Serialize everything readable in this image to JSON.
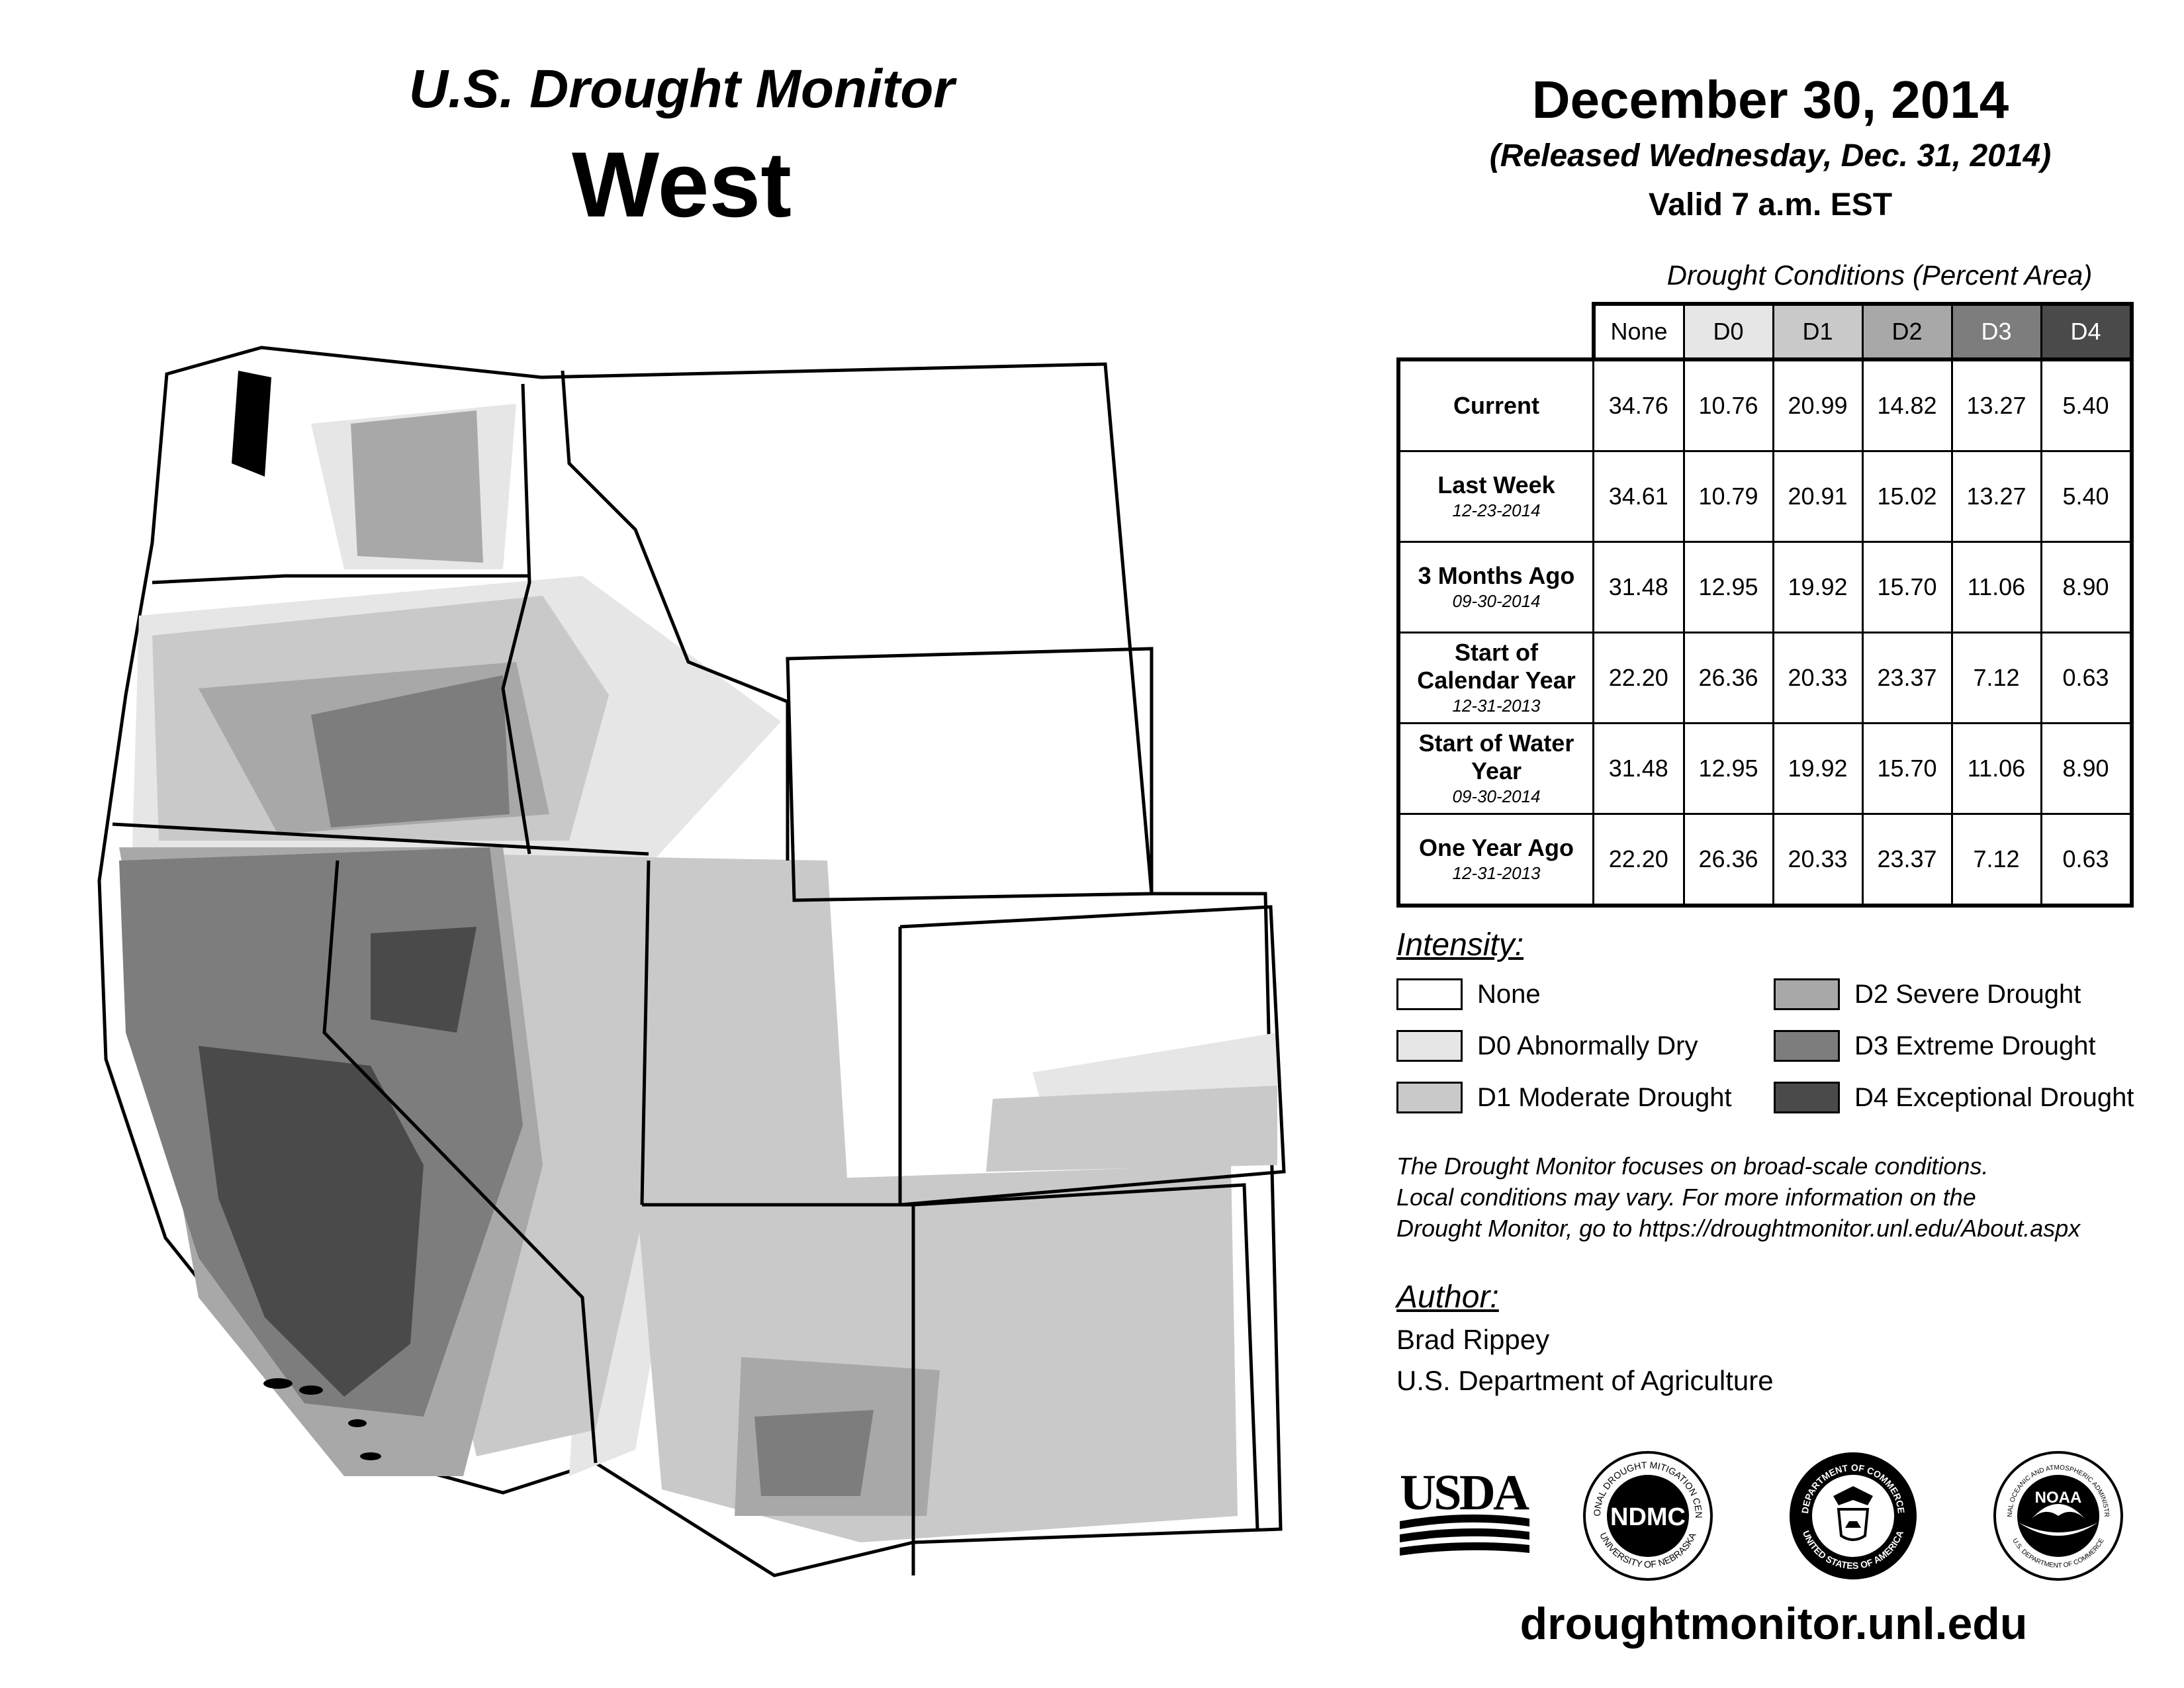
{
  "header": {
    "title": "U.S. Drought Monitor",
    "region": "West",
    "date": "December 30, 2014",
    "released": "(Released Wednesday, Dec. 31, 2014)",
    "valid": "Valid 7 a.m. EST"
  },
  "table": {
    "caption": "Drought Conditions (Percent Area)",
    "columns": [
      "None",
      "D0",
      "D1",
      "D2",
      "D3",
      "D4"
    ],
    "header_colors": [
      "#ffffff",
      "#e6e6e6",
      "#c9c9c9",
      "#a8a8a8",
      "#7d7d7d",
      "#4a4a4a"
    ],
    "header_text_colors": [
      "#000000",
      "#000000",
      "#000000",
      "#000000",
      "#ffffff",
      "#ffffff"
    ],
    "rows": [
      {
        "label": "Current",
        "date": "",
        "values": [
          "34.76",
          "10.76",
          "20.99",
          "14.82",
          "13.27",
          "5.40"
        ]
      },
      {
        "label": "Last Week",
        "date": "12-23-2014",
        "values": [
          "34.61",
          "10.79",
          "20.91",
          "15.02",
          "13.27",
          "5.40"
        ]
      },
      {
        "label": "3 Months Ago",
        "date": "09-30-2014",
        "values": [
          "31.48",
          "12.95",
          "19.92",
          "15.70",
          "11.06",
          "8.90"
        ]
      },
      {
        "label": "Start of Calendar Year",
        "date": "12-31-2013",
        "values": [
          "22.20",
          "26.36",
          "20.33",
          "23.37",
          "7.12",
          "0.63"
        ]
      },
      {
        "label": "Start of Water Year",
        "date": "09-30-2014",
        "values": [
          "31.48",
          "12.95",
          "19.92",
          "15.70",
          "11.06",
          "8.90"
        ]
      },
      {
        "label": "One Year Ago",
        "date": "12-31-2013",
        "values": [
          "22.20",
          "26.36",
          "20.33",
          "23.37",
          "7.12",
          "0.63"
        ]
      }
    ]
  },
  "legend": {
    "heading": "Intensity:",
    "items": [
      {
        "label": "None",
        "color": "#ffffff"
      },
      {
        "label": "D0 Abnormally Dry",
        "color": "#e6e6e6"
      },
      {
        "label": "D1 Moderate Drought",
        "color": "#c9c9c9"
      },
      {
        "label": "D2 Severe Drought",
        "color": "#a8a8a8"
      },
      {
        "label": "D3 Extreme Drought",
        "color": "#7d7d7d"
      },
      {
        "label": "D4 Exceptional Drought",
        "color": "#4a4a4a"
      }
    ]
  },
  "note": {
    "line1": "The Drought Monitor focuses on broad-scale conditions.",
    "line2": "Local conditions may vary. For more information on the",
    "line3": "Drought Monitor, go to https://droughtmonitor.unl.edu/About.aspx"
  },
  "author": {
    "heading": "Author:",
    "name": "Brad Rippey",
    "org": "U.S. Department of Agriculture"
  },
  "logos": {
    "usda": "USDA",
    "ndmc": "NDMC",
    "ndmc_ring_top": "NATIONAL DROUGHT MITIGATION CENTER",
    "ndmc_ring_bottom": "UNIVERSITY OF NEBRASKA",
    "doc_ring_top": "DEPARTMENT OF COMMERCE",
    "doc_ring_bottom": "UNITED STATES OF AMERICA",
    "noaa": "NOAA",
    "noaa_ring_top": "NATIONAL OCEANIC AND ATMOSPHERIC ADMINISTRATION",
    "noaa_ring_bottom": "U.S. DEPARTMENT OF COMMERCE"
  },
  "footer": {
    "url": "droughtmonitor.unl.edu"
  }
}
